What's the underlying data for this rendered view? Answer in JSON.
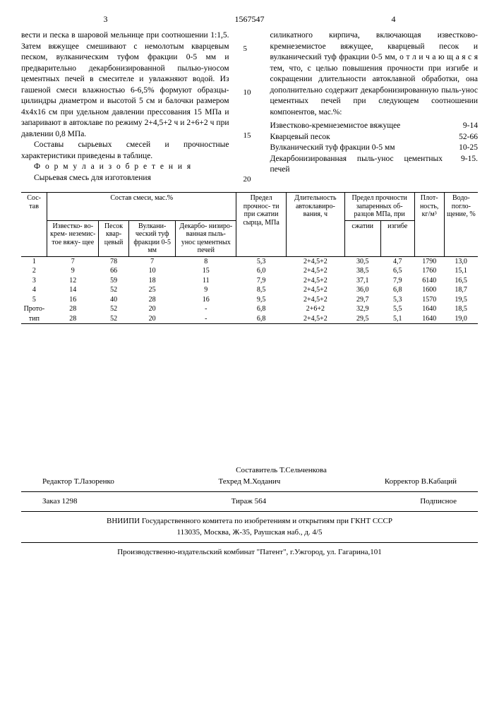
{
  "header": {
    "page_left": "3",
    "patent_number": "1567547",
    "page_right": "4"
  },
  "line_marks": [
    "5",
    "10",
    "15",
    "20"
  ],
  "left_col": {
    "p1": "вести и песка в шаровой мельнице при соотношении 1:1,5. Затем вяжущее смешивают с немолотым кварцевым песком, вулканическим туфом фракции 0-5 мм и предварительно декарбонизированной пылью-уносом цементных печей в смесителе и увлажняют водой. Из гашеной смеси влажностью 6-6,5% формуют образцы-цилиндры диаметром и высотой 5 см и балочки размером 4x4x16 см при удельном давлении прессования 15 МПа и запаривают в автоклаве по режиму 2+4,5+2 ч и 2+6+2 ч при давлении 0,8 МПа.",
    "p2": "Составы сырьевых смесей и прочностные характеристики приведены в таблице.",
    "formula_label": "Ф о р м у л а  и з о б р е т е н и я",
    "p3": "Сырьевая смесь для изготовления"
  },
  "right_col": {
    "p1": "силикатного кирпича, включающая известково-кремнеземистое вяжущее, кварцевый песок и вулканический туф фракции 0-5 мм, о т л и ч а ю щ а я с я тем, что, с целью повышения прочности при изгибе и сокращении длительности автоклавной обработки, она дополнительно содержит декарбонизированную пыль-унос цементных печей при следующем соотношении компонентов, мас.%:",
    "components": [
      {
        "label": "Известково-кремнеземистое вяжущее",
        "value": "9-14"
      },
      {
        "label": "Кварцевый песок",
        "value": "52-66"
      },
      {
        "label": "Вулканический туф фракции 0-5 мм",
        "value": "10-25"
      },
      {
        "label": "Декарбонизированная пыль-унос цементных печей",
        "value": "9-15."
      }
    ]
  },
  "table": {
    "head": {
      "c0": "Сос-\nтав",
      "c1_group": "Состав смеси, мас.%",
      "c1a": "Известко-\nво-крем-\nнеземис-\nтое вяжу-\nщее",
      "c1b": "Песок\nквар-\nцевый",
      "c1c": "Вулкани-\nческий\nтуф\nфракции\n0-5 мм",
      "c1d": "Декарбо-\nнизиро-\nванная\nпыль-\nунос\nцементных\nпечей",
      "c2": "Предел\nпрочнос-\nти при\nсжатии\nсырца,\nМПа",
      "c3": "Длительность\nавтоклавиро-\nвания, ч",
      "c4_group": "Предел прочности\nзапаренных об-\nразцов МПа, при",
      "c4a": "сжатии",
      "c4b": "изгибе",
      "c5": "Плот-\nность,\nкг/м³",
      "c6": "Водо-\nпогло-\nщение,\n%"
    },
    "rows": [
      [
        "1",
        "7",
        "78",
        "7",
        "8",
        "5,3",
        "2+4,5+2",
        "30,5",
        "4,7",
        "1790",
        "13,0"
      ],
      [
        "2",
        "9",
        "66",
        "10",
        "15",
        "6,0",
        "2+4,5+2",
        "38,5",
        "6,5",
        "1760",
        "15,1"
      ],
      [
        "3",
        "12",
        "59",
        "18",
        "11",
        "7,9",
        "2+4,5+2",
        "37,1",
        "7,9",
        "6140",
        "16,5"
      ],
      [
        "4",
        "14",
        "52",
        "25",
        "9",
        "8,5",
        "2+4,5+2",
        "36,0",
        "6,8",
        "1600",
        "18,7"
      ],
      [
        "5",
        "16",
        "40",
        "28",
        "16",
        "9,5",
        "2+4,5+2",
        "29,7",
        "5,3",
        "1570",
        "19,5"
      ],
      [
        "Прото-",
        "28",
        "52",
        "20",
        "-",
        "6,8",
        "2+6+2",
        "32,9",
        "5,5",
        "1640",
        "18,5"
      ],
      [
        "тип",
        "28",
        "52",
        "20",
        "-",
        "6,8",
        "2+4,5+2",
        "29,5",
        "5,1",
        "1640",
        "19,0"
      ]
    ]
  },
  "footer": {
    "compiler": "Составитель Т.Сельченкова",
    "editor": "Редактор Т.Лазоренко",
    "techred": "Техред М.Ходанич",
    "corrector": "Корректор В.Кабаций",
    "order": "Заказ 1298",
    "tirage": "Тираж 564",
    "sub": "Подписное",
    "org": "ВНИИПИ Государственного комитета по изобретениям и открытиям при ГКНТ СССР",
    "addr": "113035, Москва, Ж-35, Раушская наб., д. 4/5",
    "prod": "Производственно-издательский комбинат \"Патент\", г.Ужгород, ул. Гагарина,101"
  }
}
